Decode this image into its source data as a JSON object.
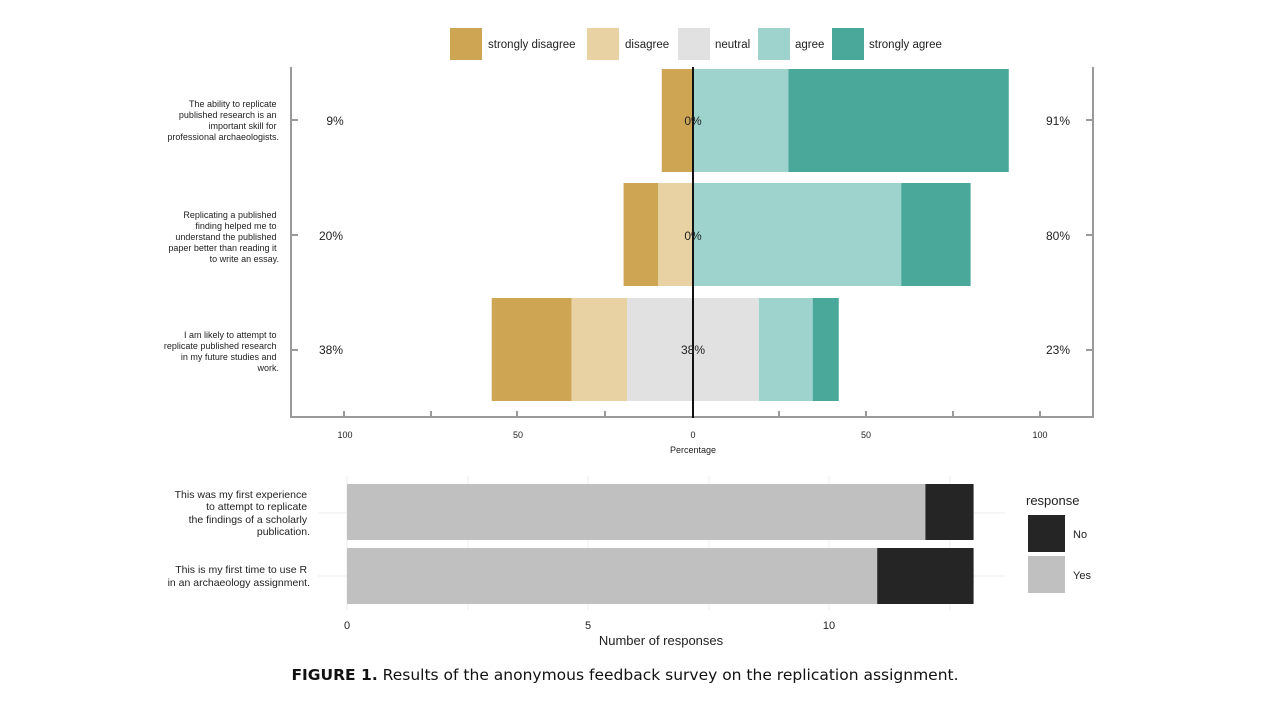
{
  "caption": {
    "label": "FIGURE 1.",
    "text": "Results of the anonymous feedback survey on the replication assignment."
  },
  "colors": {
    "strongly_disagree": "#cea552",
    "disagree": "#e8d2a4",
    "neutral": "#e1e1e1",
    "agree": "#9dd3cc",
    "strongly_agree": "#4aa89b",
    "yes": "#c0c0c0",
    "no": "#252525"
  },
  "chart_data": [
    {
      "type": "bar",
      "subtype": "diverging-stacked-likert",
      "legend": {
        "placement": "top",
        "labels": [
          "strongly disagree",
          "disagree",
          "neutral",
          "agree",
          "strongly agree"
        ]
      },
      "xlabel": "Percentage",
      "x_ticks": [
        "100",
        "50",
        "0",
        "50",
        "100"
      ],
      "xlim": [
        -100,
        100
      ],
      "items": [
        {
          "label": "The ability to replicate published research is an important skill for professional archaeologists.",
          "strongly_disagree": 9,
          "disagree": 0,
          "neutral": 0,
          "agree": 27.5,
          "strongly_agree": 63.5,
          "left_label": "9%",
          "center_label": "0%",
          "right_label": "91%"
        },
        {
          "label": "Replicating a published finding helped me to understand the published paper better than reading it to write an essay.",
          "strongly_disagree": 10,
          "disagree": 10,
          "neutral": 0,
          "agree": 60,
          "strongly_agree": 20,
          "left_label": "20%",
          "center_label": "0%",
          "right_label": "80%"
        },
        {
          "label": "I am likely to attempt to replicate published research in my future studies and work.",
          "strongly_disagree": 23,
          "disagree": 16,
          "neutral": 38,
          "agree": 15.5,
          "strongly_agree": 7.5,
          "left_label": "38%",
          "center_label": "38%",
          "right_label": "23%"
        }
      ]
    },
    {
      "type": "bar",
      "subtype": "horizontal-stacked-count",
      "xlabel": "Number of responses",
      "x_ticks": [
        0,
        5,
        10
      ],
      "xlim": [
        0,
        13.5
      ],
      "legend": {
        "title": "response",
        "placement": "right",
        "labels": [
          "No",
          "Yes"
        ]
      },
      "categories": [
        "This was my first experience to attempt to replicate the findings of a scholarly publication.",
        "This is my first time to use R in an archaeology assignment."
      ],
      "series": [
        {
          "name": "Yes",
          "values": [
            12,
            11
          ]
        },
        {
          "name": "No",
          "values": [
            1,
            2
          ]
        }
      ]
    }
  ]
}
